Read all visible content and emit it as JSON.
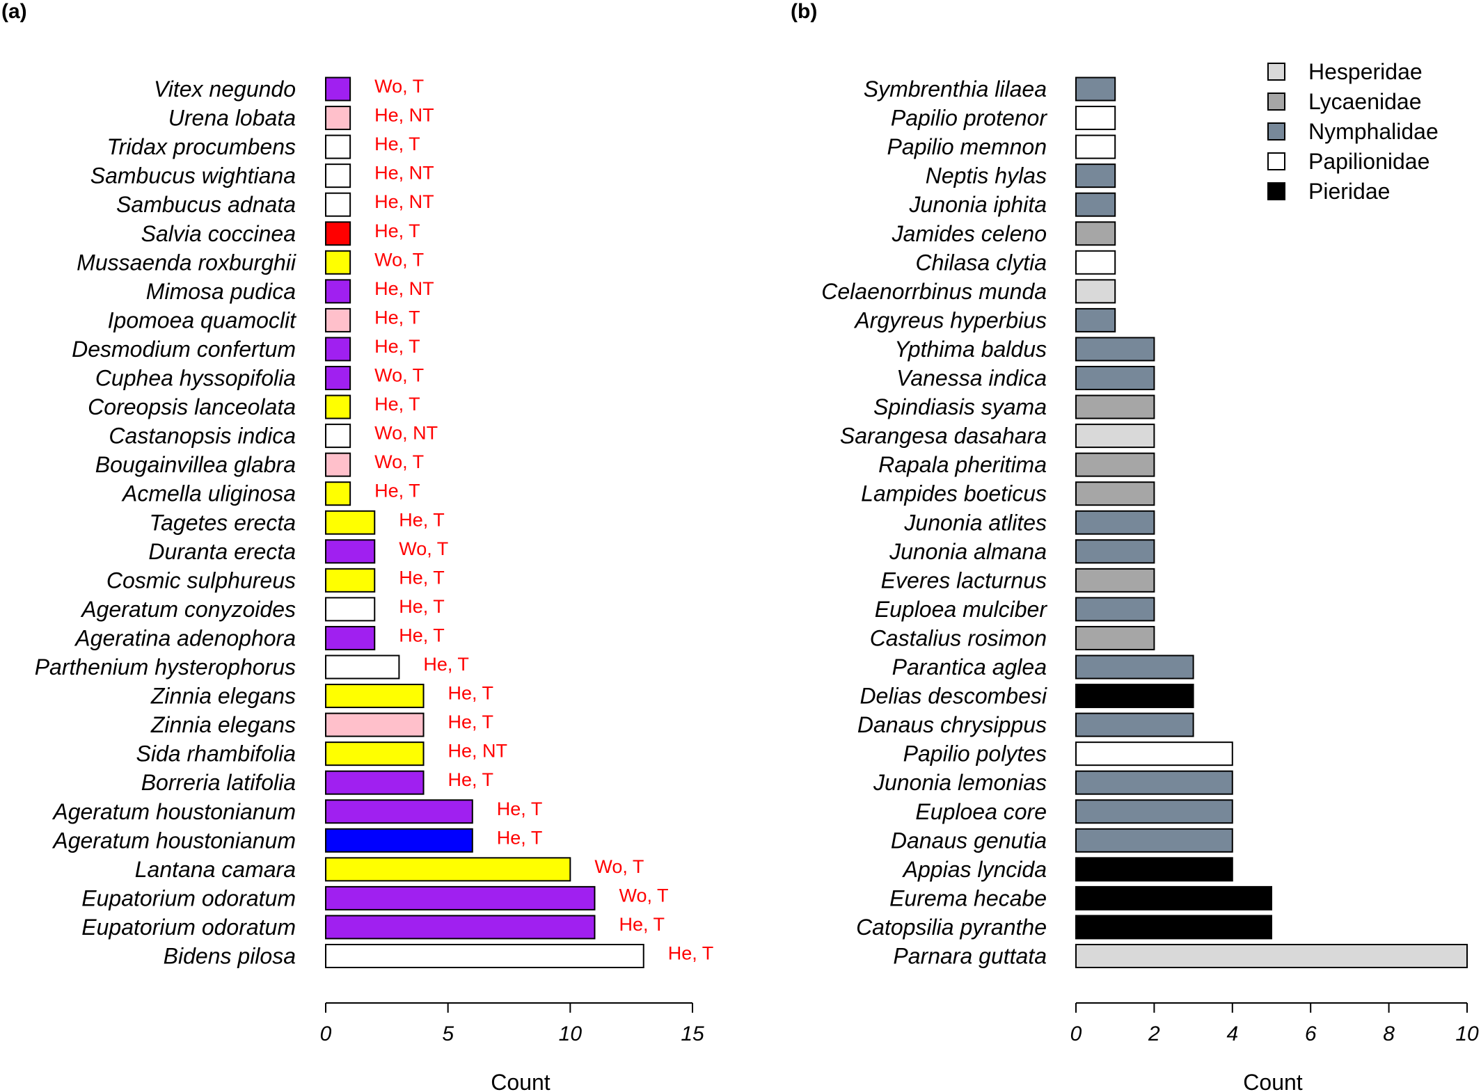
{
  "colors": {
    "purple": "#a020f0",
    "pink": "#ffc0cb",
    "white": "#ffffff",
    "red": "#ff0000",
    "yellow": "#ffff00",
    "blue": "#0000ff",
    "hesperidae": "#d9d9d9",
    "lycaenidae": "#a6a6a6",
    "nymphalidae": "#778899",
    "papilionidae": "#ffffff",
    "pieridae": "#000000",
    "annotation": "#ff0000"
  },
  "chart_data": [
    {
      "panel": "(a)",
      "type": "bar",
      "orientation": "horizontal",
      "xlabel": "Count",
      "xlim": [
        0,
        15
      ],
      "xticks": [
        0,
        5,
        10,
        15
      ],
      "bars": [
        {
          "category": "Vitex negundo",
          "value": 1,
          "color": "purple",
          "note": "Wo, T"
        },
        {
          "category": "Urena lobata",
          "value": 1,
          "color": "pink",
          "note": "He, NT"
        },
        {
          "category": "Tridax procumbens",
          "value": 1,
          "color": "white",
          "note": "He, T"
        },
        {
          "category": "Sambucus wightiana",
          "value": 1,
          "color": "white",
          "note": "He, NT"
        },
        {
          "category": "Sambucus adnata",
          "value": 1,
          "color": "white",
          "note": "He, NT"
        },
        {
          "category": "Salvia coccinea",
          "value": 1,
          "color": "red",
          "note": "He, T"
        },
        {
          "category": "Mussaenda roxburghii",
          "value": 1,
          "color": "yellow",
          "note": "Wo, T"
        },
        {
          "category": "Mimosa pudica",
          "value": 1,
          "color": "purple",
          "note": "He, NT"
        },
        {
          "category": "Ipomoea quamoclit",
          "value": 1,
          "color": "pink",
          "note": "He, T"
        },
        {
          "category": "Desmodium confertum",
          "value": 1,
          "color": "purple",
          "note": "He, T"
        },
        {
          "category": "Cuphea hyssopifolia",
          "value": 1,
          "color": "purple",
          "note": "Wo, T"
        },
        {
          "category": "Coreopsis lanceolata",
          "value": 1,
          "color": "yellow",
          "note": "He, T"
        },
        {
          "category": "Castanopsis indica",
          "value": 1,
          "color": "white",
          "note": "Wo, NT"
        },
        {
          "category": "Bougainvillea glabra",
          "value": 1,
          "color": "pink",
          "note": "Wo, T"
        },
        {
          "category": "Acmella uliginosa",
          "value": 1,
          "color": "yellow",
          "note": "He, T"
        },
        {
          "category": "Tagetes erecta",
          "value": 2,
          "color": "yellow",
          "note": "He, T"
        },
        {
          "category": "Duranta erecta",
          "value": 2,
          "color": "purple",
          "note": "Wo, T"
        },
        {
          "category": "Cosmic sulphureus",
          "value": 2,
          "color": "yellow",
          "note": "He, T"
        },
        {
          "category": "Ageratum conyzoides",
          "value": 2,
          "color": "white",
          "note": "He, T"
        },
        {
          "category": "Ageratina adenophora",
          "value": 2,
          "color": "purple",
          "note": "He, T"
        },
        {
          "category": "Parthenium hysterophorus",
          "value": 3,
          "color": "white",
          "note": "He, T"
        },
        {
          "category": "Zinnia elegans",
          "value": 4,
          "color": "yellow",
          "note": "He, T"
        },
        {
          "category": "Zinnia elegans",
          "value": 4,
          "color": "pink",
          "note": "He, T"
        },
        {
          "category": "Sida rhambifolia",
          "value": 4,
          "color": "yellow",
          "note": "He, NT"
        },
        {
          "category": "Borreria latifolia",
          "value": 4,
          "color": "purple",
          "note": "He, T"
        },
        {
          "category": "Ageratum houstonianum",
          "value": 6,
          "color": "purple",
          "note": "He, T"
        },
        {
          "category": "Ageratum houstonianum",
          "value": 6,
          "color": "blue",
          "note": "He, T"
        },
        {
          "category": "Lantana camara",
          "value": 10,
          "color": "yellow",
          "note": "Wo, T"
        },
        {
          "category": "Eupatorium odoratum",
          "value": 11,
          "color": "purple",
          "note": "Wo, T"
        },
        {
          "category": "Eupatorium odoratum",
          "value": 11,
          "color": "purple",
          "note": "He, T"
        },
        {
          "category": "Bidens pilosa",
          "value": 13,
          "color": "white",
          "note": "He, T"
        }
      ]
    },
    {
      "panel": "(b)",
      "type": "bar",
      "orientation": "horizontal",
      "xlabel": "Count",
      "xlim": [
        0,
        10
      ],
      "xticks": [
        0,
        2,
        4,
        6,
        8,
        10
      ],
      "legend": {
        "placement": "top-right",
        "entries": [
          {
            "label": "Hesperidae",
            "color": "hesperidae"
          },
          {
            "label": "Lycaenidae",
            "color": "lycaenidae"
          },
          {
            "label": "Nymphalidae",
            "color": "nymphalidae"
          },
          {
            "label": "Papilionidae",
            "color": "papilionidae"
          },
          {
            "label": "Pieridae",
            "color": "pieridae"
          }
        ]
      },
      "bars": [
        {
          "category": "Symbrenthia lilaea",
          "value": 1,
          "color": "nymphalidae"
        },
        {
          "category": "Papilio protenor",
          "value": 1,
          "color": "papilionidae"
        },
        {
          "category": "Papilio memnon",
          "value": 1,
          "color": "papilionidae"
        },
        {
          "category": "Neptis hylas",
          "value": 1,
          "color": "nymphalidae"
        },
        {
          "category": "Junonia iphita",
          "value": 1,
          "color": "nymphalidae"
        },
        {
          "category": "Jamides celeno",
          "value": 1,
          "color": "lycaenidae"
        },
        {
          "category": "Chilasa clytia",
          "value": 1,
          "color": "papilionidae"
        },
        {
          "category": "Celaenorrbinus munda",
          "value": 1,
          "color": "hesperidae"
        },
        {
          "category": "Argyreus hyperbius",
          "value": 1,
          "color": "nymphalidae"
        },
        {
          "category": "Ypthima baldus",
          "value": 2,
          "color": "nymphalidae"
        },
        {
          "category": "Vanessa indica",
          "value": 2,
          "color": "nymphalidae"
        },
        {
          "category": "Spindiasis syama",
          "value": 2,
          "color": "lycaenidae"
        },
        {
          "category": "Sarangesa dasahara",
          "value": 2,
          "color": "hesperidae"
        },
        {
          "category": "Rapala pheritima",
          "value": 2,
          "color": "lycaenidae"
        },
        {
          "category": "Lampides boeticus",
          "value": 2,
          "color": "lycaenidae"
        },
        {
          "category": "Junonia atlites",
          "value": 2,
          "color": "nymphalidae"
        },
        {
          "category": "Junonia almana",
          "value": 2,
          "color": "nymphalidae"
        },
        {
          "category": "Everes lacturnus",
          "value": 2,
          "color": "lycaenidae"
        },
        {
          "category": "Euploea mulciber",
          "value": 2,
          "color": "nymphalidae"
        },
        {
          "category": "Castalius rosimon",
          "value": 2,
          "color": "lycaenidae"
        },
        {
          "category": "Parantica aglea",
          "value": 3,
          "color": "nymphalidae"
        },
        {
          "category": "Delias descombesi",
          "value": 3,
          "color": "pieridae"
        },
        {
          "category": "Danaus chrysippus",
          "value": 3,
          "color": "nymphalidae"
        },
        {
          "category": "Papilio polytes",
          "value": 4,
          "color": "papilionidae"
        },
        {
          "category": "Junonia lemonias",
          "value": 4,
          "color": "nymphalidae"
        },
        {
          "category": "Euploea core",
          "value": 4,
          "color": "nymphalidae"
        },
        {
          "category": "Danaus genutia",
          "value": 4,
          "color": "nymphalidae"
        },
        {
          "category": "Appias lyncida",
          "value": 4,
          "color": "pieridae"
        },
        {
          "category": "Eurema hecabe",
          "value": 5,
          "color": "pieridae"
        },
        {
          "category": "Catopsilia pyranthe",
          "value": 5,
          "color": "pieridae"
        },
        {
          "category": "Parnara guttata",
          "value": 10,
          "color": "hesperidae"
        }
      ]
    }
  ]
}
